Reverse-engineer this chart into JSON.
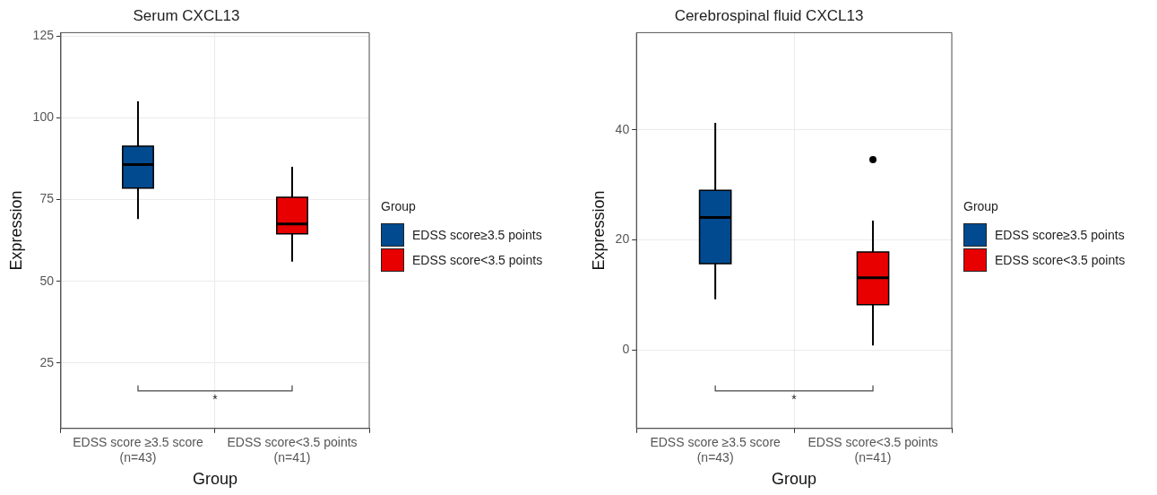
{
  "chart_data": [
    {
      "type": "box",
      "title": "Serum CXCL13",
      "xlabel": "Group",
      "ylabel": "Expression",
      "legend_title": "Group",
      "categories": [
        "EDSS score ≥3.5 score\n(n=43)",
        "EDSS score<3.5 points\n(n=41)"
      ],
      "series": [
        {
          "name": "EDSS score≥3.5 points",
          "color": "#024a8f",
          "boxes": [
            {
              "low": 69,
              "q1": 78.5,
              "median": 85.7,
              "q3": 91.3,
              "high": 105
            },
            null
          ]
        },
        {
          "name": "EDSS score<3.5 points",
          "color": "#e80000",
          "boxes": [
            null,
            {
              "low": 56,
              "q1": 64.5,
              "median": 67.5,
              "q3": 75.7,
              "high": 85
            }
          ]
        }
      ],
      "ylim": [
        5,
        126
      ],
      "yticks": [
        25,
        50,
        75,
        100,
        125
      ],
      "grid": true,
      "legend": "right",
      "annotations": [
        "*"
      ]
    },
    {
      "type": "box",
      "title": "Cerebrospinal fluid CXCL13",
      "xlabel": "Group",
      "ylabel": "Expression",
      "legend_title": "Group",
      "categories": [
        "EDSS score ≥3.5 score\n(n=43)",
        "EDSS score<3.5 points\n(n=41)"
      ],
      "series": [
        {
          "name": "EDSS score≥3.5 points",
          "color": "#024a8f",
          "boxes": [
            {
              "low": 9.2,
              "q1": 15.7,
              "median": 24.1,
              "q3": 29,
              "high": 41.3
            },
            null
          ]
        },
        {
          "name": "EDSS score<3.5 points",
          "color": "#e80000",
          "boxes": [
            null,
            {
              "low": 0.8,
              "q1": 8.2,
              "median": 13.1,
              "q3": 17.8,
              "high": 23.5,
              "outliers": [
                34.6
              ]
            }
          ]
        }
      ],
      "ylim": [
        -14.3,
        57.7
      ],
      "yticks": [
        0,
        20,
        40
      ],
      "grid": true,
      "legend": "right",
      "annotations": [
        "*"
      ]
    }
  ]
}
